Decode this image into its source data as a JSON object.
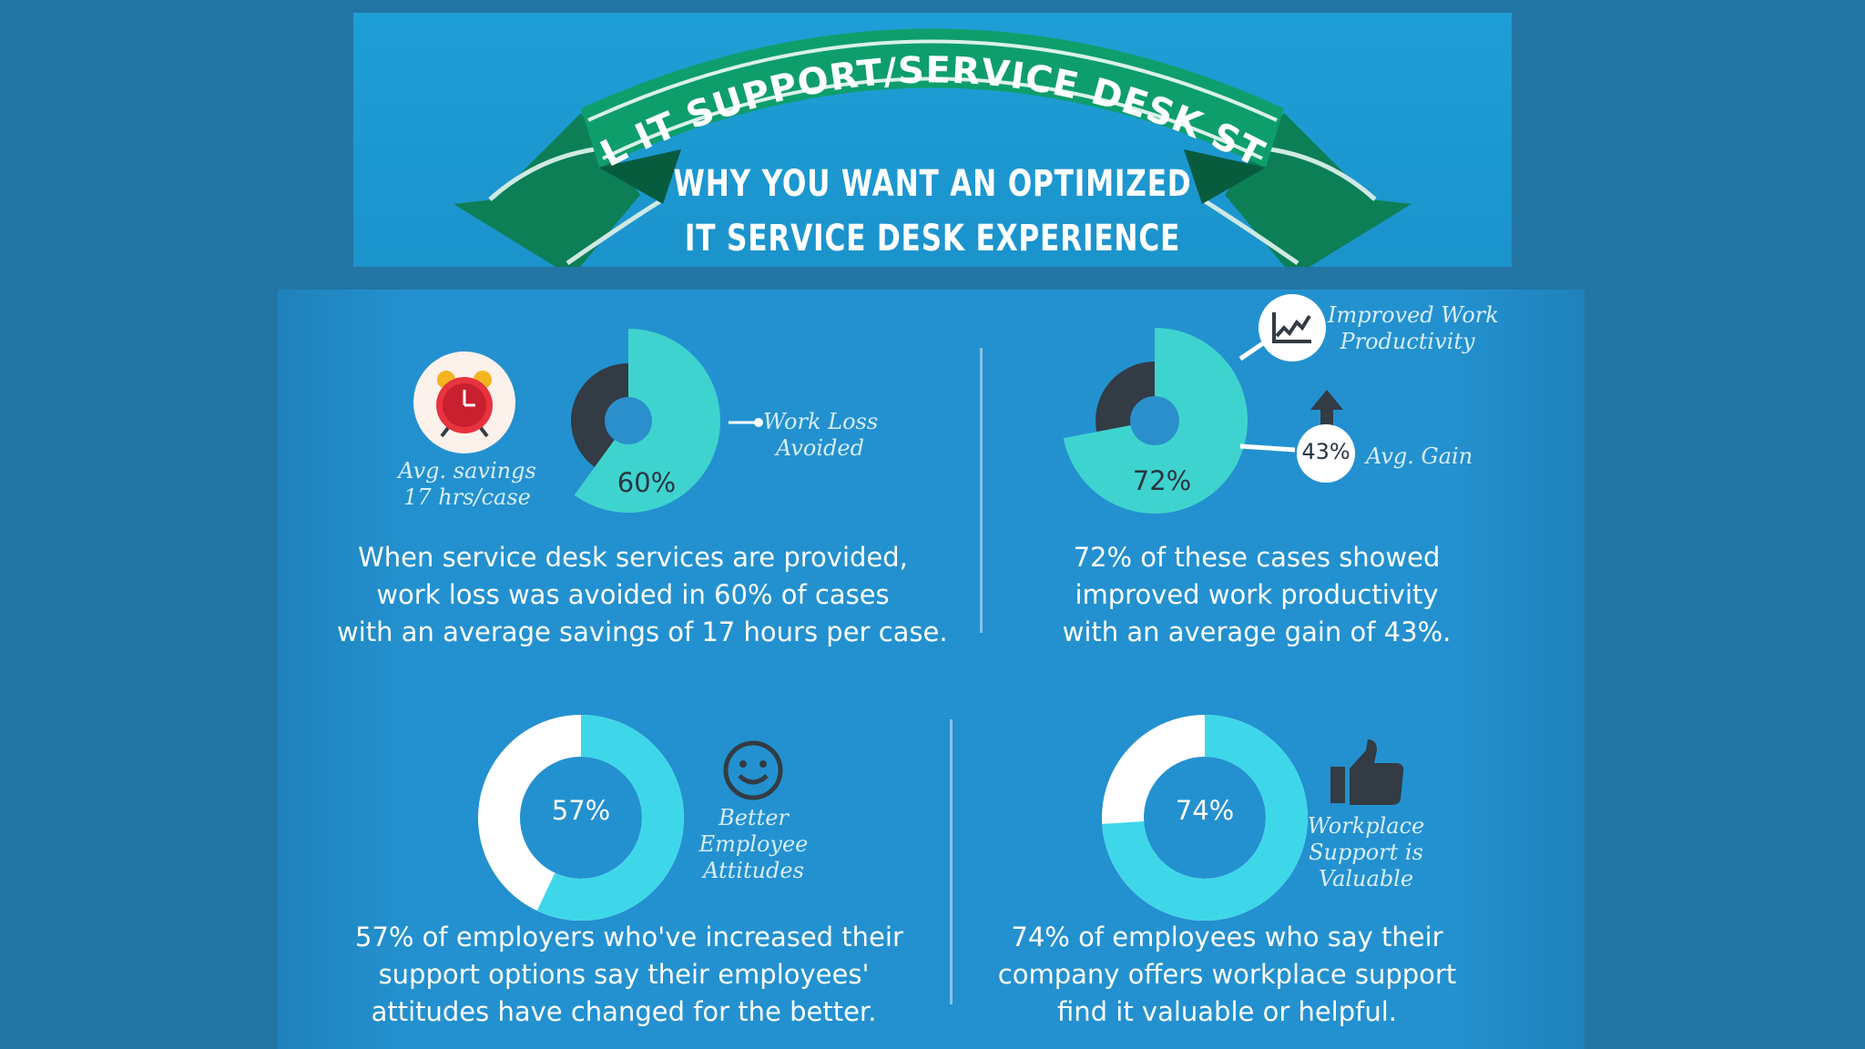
{
  "header": {
    "banner_title": "INTERNAL IT SUPPORT/SERVICE  DESK STATISTICS",
    "subtitle_line1": "WHY YOU WANT AN OPTIMIZED",
    "subtitle_line2": "IT SERVICE DESK EXPERIENCE"
  },
  "colors": {
    "background": "#2375a3",
    "header_blue": "#1e9fd6",
    "banner_green": "#0e9e6c",
    "teal": "#3fd3cf",
    "dark": "#333b44",
    "cyan": "#3ed7ea",
    "white": "#ffffff"
  },
  "stat1": {
    "percent": 60,
    "percent_label": "60%",
    "clock_label": "Avg. savings\n17 hrs/case",
    "callout_label": "Work Loss\nAvoided",
    "icon": "alarm-clock-icon",
    "caption": "When service desk services are provided,\nwork loss was avoided in 60% of cases\nwith an average savings of 17 hours per case."
  },
  "stat2": {
    "percent": 72,
    "percent_label": "72%",
    "productivity_label": "Improved Work\nProductivity",
    "gain_value": "43%",
    "gain_label": "Avg. Gain",
    "icons": [
      "line-chart-icon",
      "arrow-up-icon"
    ],
    "caption": "72% of these cases showed\nimproved work productivity\nwith an average gain of 43%."
  },
  "stat3": {
    "percent": 57,
    "percent_label": "57%",
    "label": "Better\nEmployee\nAttitudes",
    "icon": "smiley-face-icon",
    "caption": "57% of employers who've increased their\nsupport options say their employees'\nattitudes have changed for the better."
  },
  "stat4": {
    "percent": 74,
    "percent_label": "74%",
    "label": "Workplace\nSupport is\nValuable",
    "icon": "thumbs-up-icon",
    "caption": "74% of employees who say their\ncompany offers workplace support\nfind it valuable or helpful."
  }
}
